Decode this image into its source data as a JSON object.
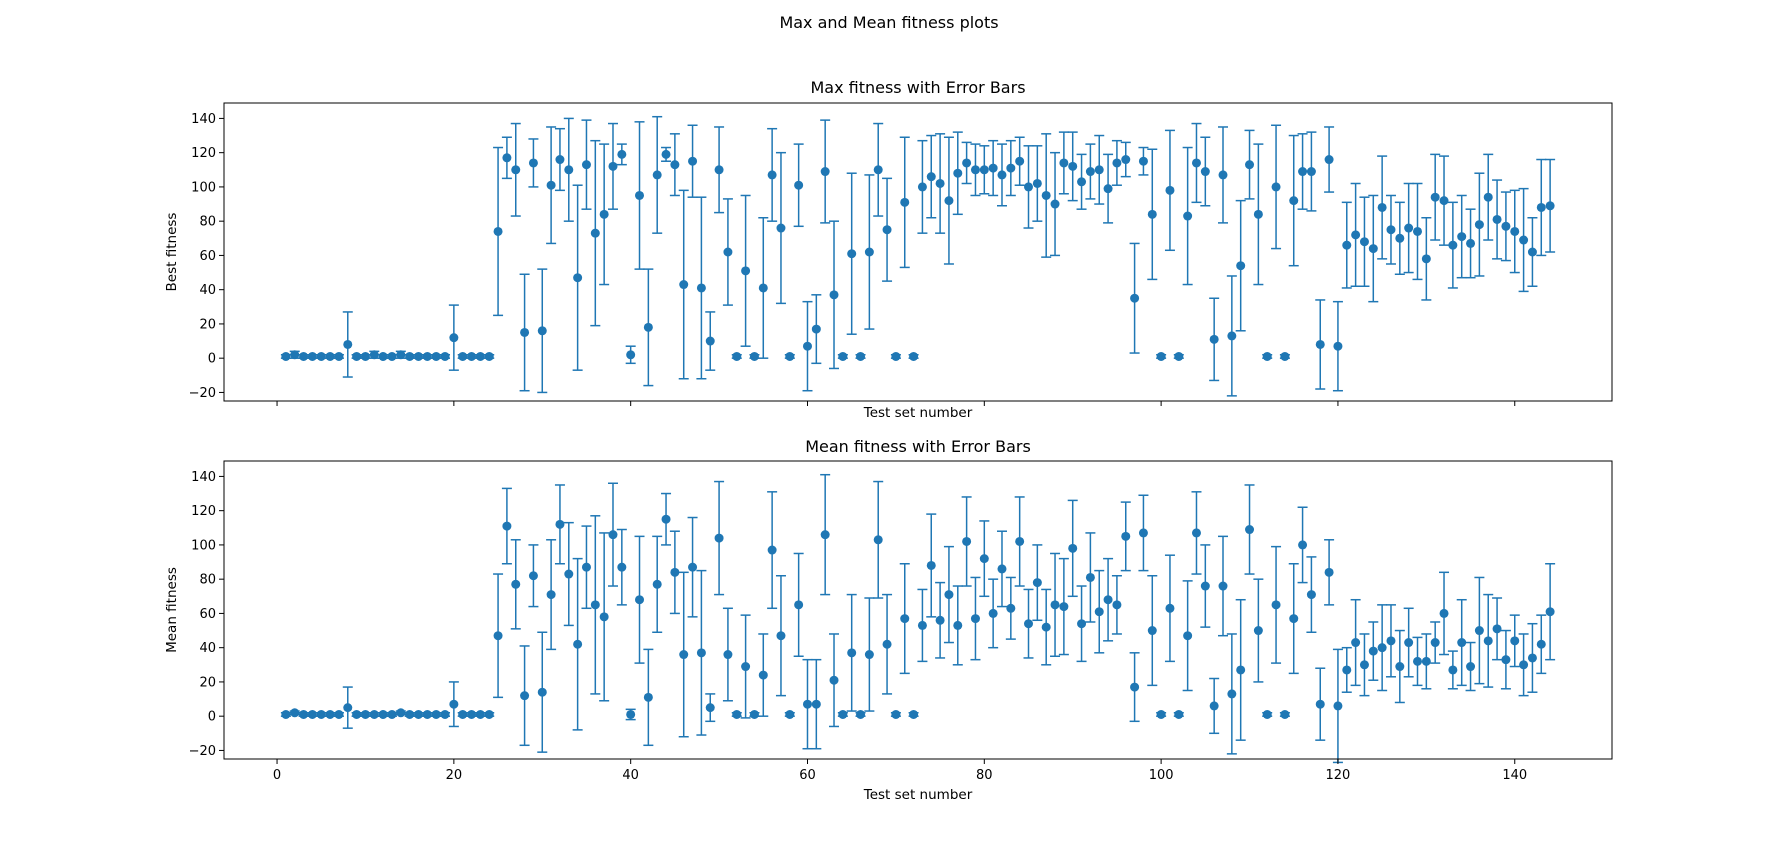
{
  "suptitle": "Max and Mean fitness plots",
  "colors": {
    "marker": "#1f77b4",
    "axes": "#000000",
    "background": "#ffffff"
  },
  "chart_data": [
    {
      "type": "scatter",
      "style": "errorbar",
      "title": "Max fitness with Error Bars",
      "xlabel": "Test set number",
      "ylabel": "Best fitness",
      "xlim": [
        -6,
        151
      ],
      "ylim": [
        -25,
        149
      ],
      "xticks": [
        0,
        20,
        40,
        60,
        80,
        100,
        120,
        140
      ],
      "xtick_labels_shown": false,
      "yticks": [
        -20,
        0,
        20,
        40,
        60,
        80,
        100,
        120,
        140
      ],
      "grid": false,
      "series": [
        {
          "x": [
            1,
            2,
            3,
            4,
            5,
            6,
            7,
            8,
            9,
            10,
            11,
            12,
            13,
            14,
            15,
            16,
            17,
            18,
            19,
            20,
            21,
            22,
            23,
            24,
            25,
            26,
            27,
            28,
            29,
            30,
            31,
            32,
            33,
            34,
            35,
            36,
            37,
            38,
            39,
            40,
            41,
            42,
            43,
            44,
            45,
            46,
            47,
            48,
            49,
            50,
            51,
            52,
            53,
            54,
            55,
            56,
            57,
            58,
            59,
            60,
            61,
            62,
            63,
            64,
            65,
            66,
            67,
            68,
            69,
            70,
            71,
            72,
            73,
            74,
            75,
            76,
            77,
            78,
            79,
            80,
            81,
            82,
            83,
            84,
            85,
            86,
            87,
            88,
            89,
            90,
            91,
            92,
            93,
            94,
            95,
            96,
            97,
            98,
            99,
            100,
            101,
            102,
            103,
            104,
            105,
            106,
            107,
            108,
            109,
            110,
            111,
            112,
            113,
            114,
            115,
            116,
            117,
            118,
            119,
            120,
            121,
            122,
            123,
            124,
            125,
            126,
            127,
            128,
            129,
            130,
            131,
            132,
            133,
            134,
            135,
            136,
            137,
            138,
            139,
            140,
            141,
            142,
            143,
            144
          ],
          "y": [
            1,
            2,
            1,
            1,
            1,
            1,
            1,
            8,
            1,
            1,
            2,
            1,
            1,
            2,
            1,
            1,
            1,
            1,
            1,
            12,
            1,
            1,
            1,
            1,
            74,
            117,
            110,
            15,
            114,
            16,
            101,
            116,
            110,
            47,
            113,
            73,
            84,
            112,
            119,
            2,
            95,
            18,
            107,
            119,
            113,
            43,
            115,
            41,
            10,
            110,
            62,
            1,
            51,
            1,
            41,
            107,
            76,
            1,
            101,
            7,
            17,
            109,
            37,
            1,
            61,
            1,
            62,
            110,
            75,
            1,
            91,
            1,
            100,
            106,
            102,
            92,
            108,
            114,
            110,
            110,
            111,
            107,
            111,
            115,
            100,
            102,
            95,
            90,
            114,
            112,
            103,
            109,
            110,
            99,
            114,
            116,
            35,
            115,
            84,
            1,
            98,
            1,
            83,
            114,
            109,
            11,
            107,
            13,
            54,
            113,
            84,
            1,
            100,
            1,
            92,
            109,
            109,
            8,
            116,
            7,
            66,
            72,
            68,
            64,
            88,
            75,
            70,
            76,
            74,
            58,
            94,
            92,
            66,
            71,
            67,
            78,
            94,
            81,
            77,
            74,
            69,
            62,
            88,
            89
          ],
          "err": [
            1,
            2,
            1,
            1,
            1,
            1,
            1,
            19,
            1,
            1,
            2,
            1,
            1,
            2,
            1,
            1,
            1,
            1,
            1,
            19,
            1,
            1,
            1,
            1,
            49,
            12,
            27,
            34,
            14,
            36,
            34,
            18,
            30,
            54,
            26,
            54,
            41,
            25,
            6,
            5,
            43,
            34,
            34,
            4,
            18,
            55,
            21,
            53,
            17,
            25,
            31,
            1,
            44,
            1,
            41,
            27,
            44,
            1,
            24,
            26,
            20,
            30,
            43,
            1,
            47,
            1,
            45,
            27,
            30,
            1,
            38,
            1,
            27,
            24,
            29,
            37,
            24,
            12,
            15,
            14,
            16,
            18,
            16,
            14,
            24,
            22,
            36,
            30,
            18,
            20,
            16,
            16,
            20,
            20,
            13,
            10,
            32,
            8,
            38,
            1,
            35,
            1,
            40,
            23,
            20,
            24,
            28,
            35,
            38,
            20,
            41,
            1,
            36,
            1,
            38,
            22,
            23,
            26,
            19,
            26,
            25,
            30,
            26,
            31,
            30,
            20,
            21,
            26,
            28,
            24,
            25,
            26,
            25,
            24,
            20,
            30,
            25,
            23,
            20,
            24,
            30,
            20,
            28,
            27
          ]
        }
      ]
    },
    {
      "type": "scatter",
      "style": "errorbar",
      "title": "Mean fitness with Error Bars",
      "xlabel": "Test set number",
      "ylabel": "Mean fitness",
      "xlim": [
        -6,
        151
      ],
      "ylim": [
        -25,
        149
      ],
      "xticks": [
        0,
        20,
        40,
        60,
        80,
        100,
        120,
        140
      ],
      "xtick_labels_shown": true,
      "yticks": [
        -20,
        0,
        20,
        40,
        60,
        80,
        100,
        120,
        140
      ],
      "grid": false,
      "series": [
        {
          "x": [
            1,
            2,
            3,
            4,
            5,
            6,
            7,
            8,
            9,
            10,
            11,
            12,
            13,
            14,
            15,
            16,
            17,
            18,
            19,
            20,
            21,
            22,
            23,
            24,
            25,
            26,
            27,
            28,
            29,
            30,
            31,
            32,
            33,
            34,
            35,
            36,
            37,
            38,
            39,
            40,
            41,
            42,
            43,
            44,
            45,
            46,
            47,
            48,
            49,
            50,
            51,
            52,
            53,
            54,
            55,
            56,
            57,
            58,
            59,
            60,
            61,
            62,
            63,
            64,
            65,
            66,
            67,
            68,
            69,
            70,
            71,
            72,
            73,
            74,
            75,
            76,
            77,
            78,
            79,
            80,
            81,
            82,
            83,
            84,
            85,
            86,
            87,
            88,
            89,
            90,
            91,
            92,
            93,
            94,
            95,
            96,
            97,
            98,
            99,
            100,
            101,
            102,
            103,
            104,
            105,
            106,
            107,
            108,
            109,
            110,
            111,
            112,
            113,
            114,
            115,
            116,
            117,
            118,
            119,
            120,
            121,
            122,
            123,
            124,
            125,
            126,
            127,
            128,
            129,
            130,
            131,
            132,
            133,
            134,
            135,
            136,
            137,
            138,
            139,
            140,
            141,
            142,
            143,
            144
          ],
          "y": [
            1,
            2,
            1,
            1,
            1,
            1,
            1,
            5,
            1,
            1,
            1,
            1,
            1,
            2,
            1,
            1,
            1,
            1,
            1,
            7,
            1,
            1,
            1,
            1,
            47,
            111,
            77,
            12,
            82,
            14,
            71,
            112,
            83,
            42,
            87,
            65,
            58,
            106,
            87,
            1,
            68,
            11,
            77,
            115,
            84,
            36,
            87,
            37,
            5,
            104,
            36,
            1,
            29,
            1,
            24,
            97,
            47,
            1,
            65,
            7,
            7,
            106,
            21,
            1,
            37,
            1,
            36,
            103,
            42,
            1,
            57,
            1,
            53,
            88,
            56,
            71,
            53,
            102,
            57,
            92,
            60,
            86,
            63,
            102,
            54,
            78,
            52,
            65,
            64,
            98,
            54,
            81,
            61,
            68,
            65,
            105,
            17,
            107,
            50,
            1,
            63,
            1,
            47,
            107,
            76,
            6,
            76,
            13,
            27,
            109,
            50,
            1,
            65,
            1,
            57,
            100,
            71,
            7,
            84,
            6,
            27,
            43,
            30,
            38,
            40,
            44,
            29,
            43,
            32,
            32,
            43,
            60,
            27,
            43,
            29,
            50,
            44,
            51,
            33,
            44,
            30,
            34,
            42,
            61
          ],
          "err": [
            1,
            1,
            1,
            1,
            1,
            1,
            1,
            12,
            1,
            1,
            1,
            1,
            1,
            1,
            1,
            1,
            1,
            1,
            1,
            13,
            1,
            1,
            1,
            1,
            36,
            22,
            26,
            29,
            18,
            35,
            32,
            23,
            30,
            50,
            24,
            52,
            49,
            30,
            22,
            3,
            37,
            28,
            28,
            15,
            24,
            48,
            29,
            48,
            8,
            33,
            27,
            1,
            30,
            1,
            24,
            34,
            35,
            1,
            30,
            26,
            26,
            35,
            27,
            1,
            34,
            1,
            33,
            34,
            29,
            1,
            32,
            1,
            21,
            30,
            22,
            28,
            23,
            26,
            24,
            22,
            20,
            22,
            18,
            26,
            20,
            22,
            22,
            30,
            28,
            28,
            22,
            26,
            24,
            24,
            17,
            20,
            20,
            22,
            32,
            1,
            31,
            1,
            32,
            24,
            24,
            16,
            29,
            35,
            41,
            26,
            30,
            1,
            34,
            1,
            32,
            22,
            22,
            21,
            19,
            33,
            13,
            25,
            18,
            17,
            25,
            21,
            21,
            20,
            14,
            16,
            12,
            24,
            11,
            25,
            14,
            31,
            27,
            18,
            17,
            15,
            18,
            20,
            17,
            28
          ]
        }
      ]
    }
  ]
}
